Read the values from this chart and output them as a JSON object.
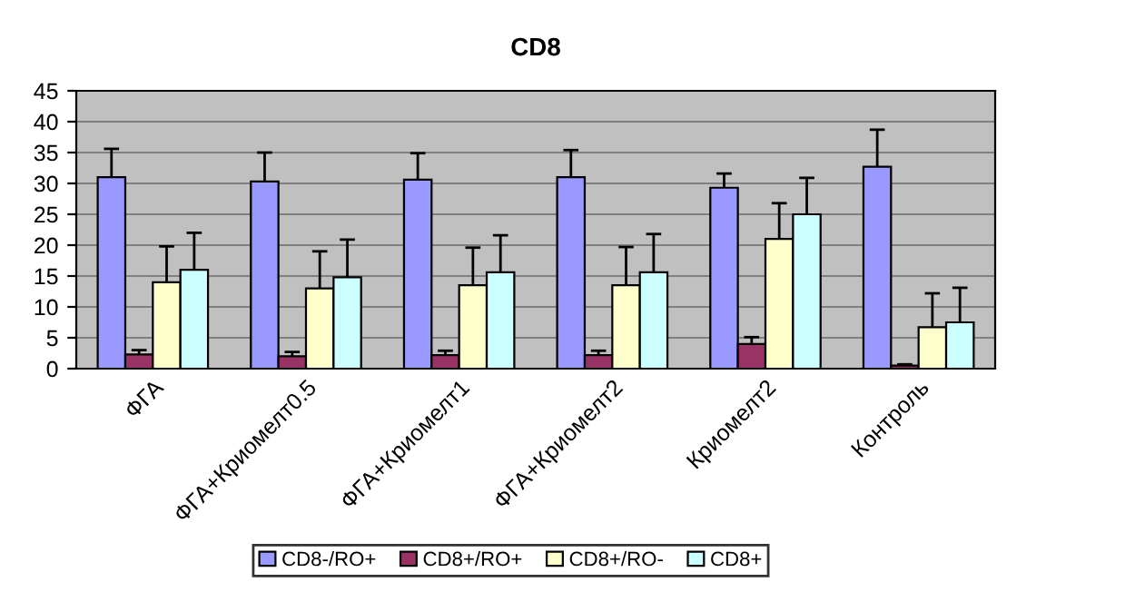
{
  "chart_data": {
    "type": "bar",
    "title": "CD8",
    "categories": [
      "ФГА",
      "ФГА+Криомелт0.5",
      "ФГА+Криомелт1",
      "ФГА+Криомелт2",
      "Криомелт2",
      "Контроль"
    ],
    "series": [
      {
        "name": "CD8-/RO+",
        "color": "#9999ff",
        "values": [
          31,
          30.3,
          30.6,
          31,
          29.3,
          32.7
        ],
        "errors": [
          4.6,
          4.7,
          4.3,
          4.4,
          2.3,
          6
        ]
      },
      {
        "name": "CD8+/RO+",
        "color": "#993366",
        "values": [
          2.3,
          2,
          2.2,
          2.2,
          4,
          0.5
        ],
        "errors": [
          0.7,
          0.7,
          0.7,
          0.7,
          1.1,
          0.2
        ]
      },
      {
        "name": "CD8+/RO-",
        "color": "#ffffcc",
        "values": [
          14,
          13,
          13.5,
          13.5,
          21,
          6.7
        ],
        "errors": [
          5.8,
          6,
          6.1,
          6.2,
          5.8,
          5.5
        ]
      },
      {
        "name": "CD8+",
        "color": "#ccffff",
        "values": [
          16,
          14.8,
          15.6,
          15.6,
          25,
          7.5
        ],
        "errors": [
          6,
          6.1,
          6,
          6.2,
          5.9,
          5.6
        ]
      }
    ],
    "ylim": [
      0,
      45
    ],
    "yticks": [
      0,
      5,
      10,
      15,
      20,
      25,
      30,
      35,
      40,
      45
    ],
    "grid": "y",
    "legend": "bottom"
  }
}
